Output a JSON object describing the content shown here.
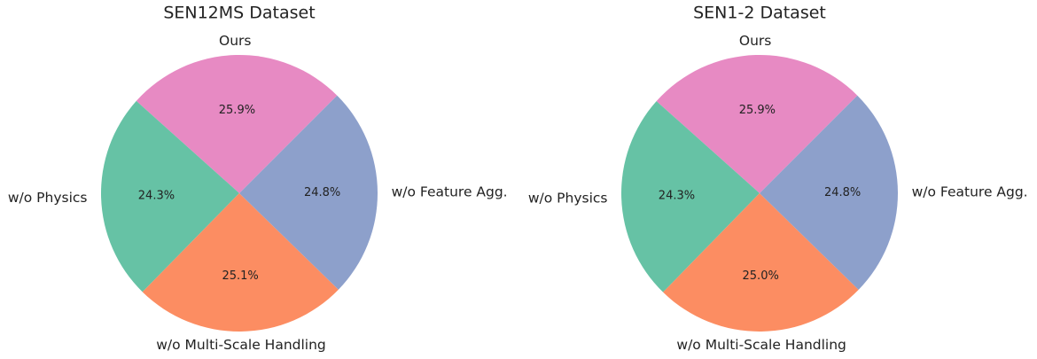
{
  "chart_data": [
    {
      "type": "pie",
      "title": "SEN12MS Dataset",
      "categories": [
        "Ours",
        "w/o Physics",
        "w/o Multi-Scale Handling",
        "w/o Feature Agg."
      ],
      "values": [
        25.9,
        24.3,
        25.1,
        24.8
      ],
      "value_labels": [
        "25.9%",
        "24.3%",
        "25.1%",
        "24.8%"
      ],
      "colors": [
        "#e78ac3",
        "#66c2a5",
        "#fc8d62",
        "#8da0cb"
      ]
    },
    {
      "type": "pie",
      "title": "SEN1-2 Dataset",
      "categories": [
        "Ours",
        "w/o Physics",
        "w/o Multi-Scale Handling",
        "w/o Feature Agg."
      ],
      "values": [
        25.9,
        24.3,
        25.0,
        24.8
      ],
      "value_labels": [
        "25.9%",
        "24.3%",
        "25.0%",
        "24.8%"
      ],
      "colors": [
        "#e78ac3",
        "#66c2a5",
        "#fc8d62",
        "#8da0cb"
      ]
    }
  ]
}
